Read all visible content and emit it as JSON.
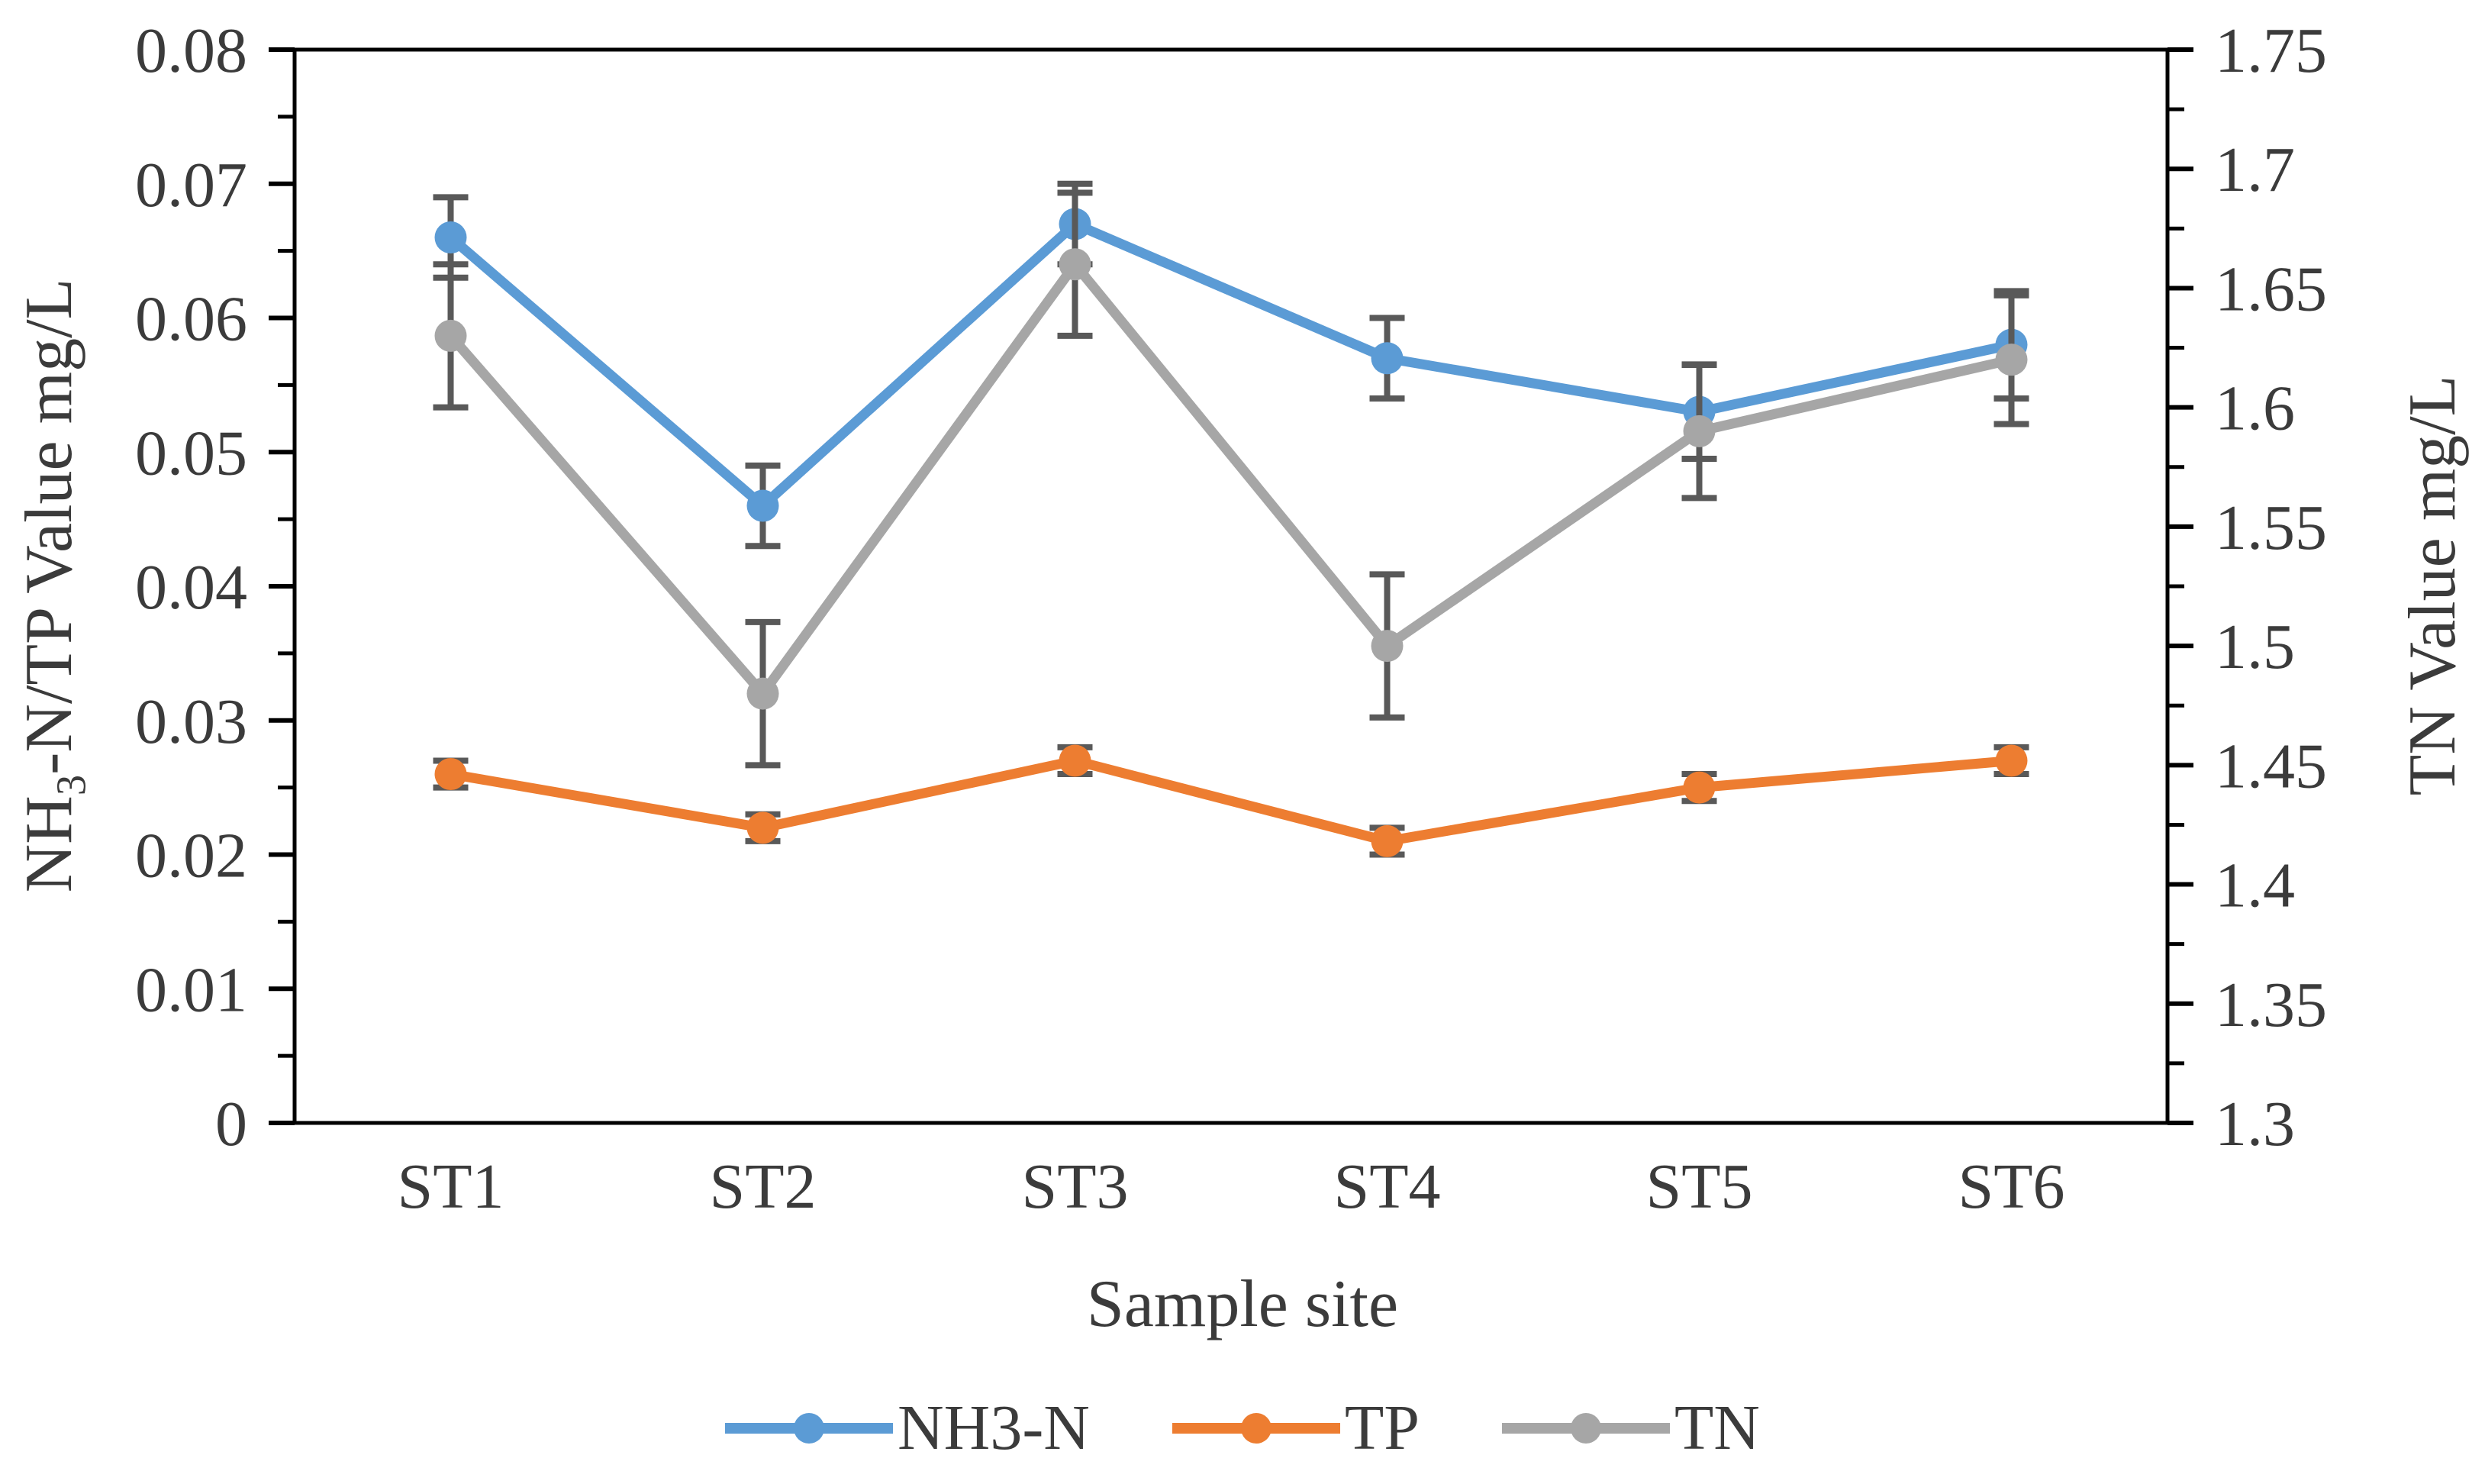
{
  "chart_data": {
    "type": "line",
    "title": "",
    "categories": [
      "ST1",
      "ST2",
      "ST3",
      "ST4",
      "ST5",
      "ST6"
    ],
    "x_axis_title": "Sample site",
    "left_axis": {
      "title_pre": "NH",
      "title_sub": "3",
      "title_post": "-N/TP Value mg/L",
      "min": 0,
      "max": 0.08,
      "major_step": 0.01,
      "minor_step": 0.005,
      "tick_labels": [
        "0",
        "0.01",
        "0.02",
        "0.03",
        "0.04",
        "0.05",
        "0.06",
        "0.07",
        "0.08"
      ]
    },
    "right_axis": {
      "title": "TN Value mg/L",
      "min": 1.3,
      "max": 1.75,
      "major_step": 0.05,
      "minor_step": 0.025,
      "tick_labels": [
        "1.3",
        "1.35",
        "1.4",
        "1.45",
        "1.5",
        "1.55",
        "1.6",
        "1.65",
        "1.7",
        "1.75"
      ]
    },
    "series": [
      {
        "name": "NH3-N",
        "axis": "left",
        "color": "#5B9BD5",
        "values": [
          0.066,
          0.046,
          0.067,
          0.057,
          0.053,
          0.058
        ],
        "errors": [
          0.003,
          0.003,
          0.003,
          0.003,
          0.0035,
          0.004
        ]
      },
      {
        "name": "TP",
        "axis": "left",
        "color": "#ED7D31",
        "values": [
          0.026,
          0.022,
          0.027,
          0.021,
          0.025,
          0.027
        ],
        "errors": [
          0.001,
          0.001,
          0.001,
          0.001,
          0.001,
          0.001
        ]
      },
      {
        "name": "TN",
        "axis": "right",
        "color": "#A6A6A6",
        "values": [
          1.63,
          1.48,
          1.66,
          1.5,
          1.59,
          1.62
        ],
        "errors": [
          0.03,
          0.03,
          0.03,
          0.03,
          0.028,
          0.027
        ]
      }
    ],
    "error_bar_color": "#595959",
    "axis_line_color": "#000000",
    "tick_label_color": "#3b3b3b",
    "legend_position": "bottom",
    "grid": false
  }
}
